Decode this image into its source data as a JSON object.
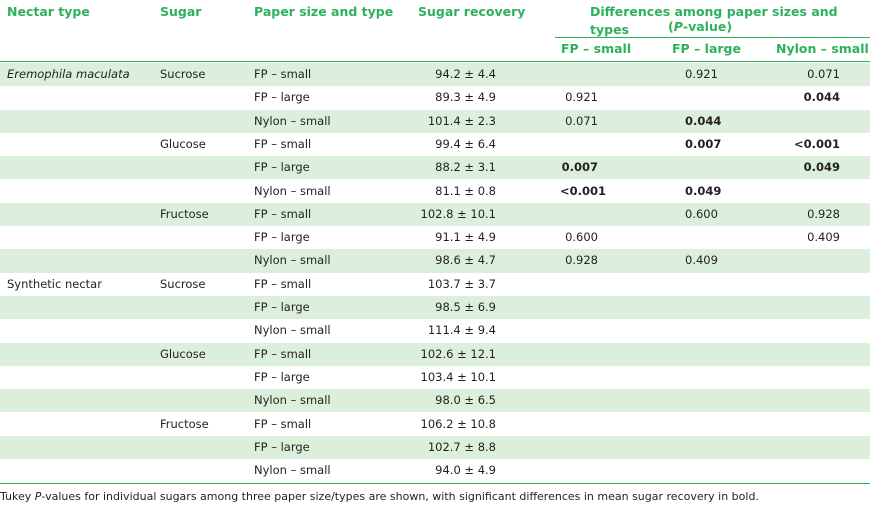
{
  "header": {
    "nectar_type": "Nectar type",
    "sugar": "Sugar",
    "paper": "Paper size and type",
    "recovery": "Sugar recovery",
    "differences_line1": "Differences among paper sizes and types",
    "differences_p": "P",
    "differences_value": "-value)",
    "differences_open": "(",
    "fp_small": "FP – small",
    "fp_large": "FP – large",
    "nylon_small": "Nylon – small"
  },
  "rows": [
    {
      "nectar": "Eremophila maculata",
      "sugar": "Sucrose",
      "paper": "FP – small",
      "recovery": "94.2 ± 4.4",
      "p1": "",
      "p2": "0.921",
      "p3": "0.071",
      "b1": false,
      "b2": false,
      "b3": false
    },
    {
      "nectar": "",
      "sugar": "",
      "paper": "FP – large",
      "recovery": "89.3 ± 4.9",
      "p1": "0.921",
      "p2": "",
      "p3": "0.044",
      "b1": false,
      "b2": false,
      "b3": true
    },
    {
      "nectar": "",
      "sugar": "",
      "paper": "Nylon – small",
      "recovery": "101.4 ± 2.3",
      "p1": "0.071",
      "p2": "0.044",
      "p3": "",
      "b1": false,
      "b2": true,
      "b3": false
    },
    {
      "nectar": "",
      "sugar": "Glucose",
      "paper": "FP – small",
      "recovery": "99.4 ± 6.4",
      "p1": "",
      "p2": "0.007",
      "p3": "<0.001",
      "b1": false,
      "b2": true,
      "b3": true
    },
    {
      "nectar": "",
      "sugar": "",
      "paper": "FP – large",
      "recovery": "88.2 ± 3.1",
      "p1": "0.007",
      "p2": "",
      "p3": "0.049",
      "b1": true,
      "b2": false,
      "b3": true
    },
    {
      "nectar": "",
      "sugar": "",
      "paper": "Nylon – small",
      "recovery": "81.1 ± 0.8",
      "p1": "<0.001",
      "p2": "0.049",
      "p3": "",
      "b1": true,
      "b2": true,
      "b3": false
    },
    {
      "nectar": "",
      "sugar": "Fructose",
      "paper": "FP – small",
      "recovery": "102.8 ± 10.1",
      "p1": "",
      "p2": "0.600",
      "p3": "0.928",
      "b1": false,
      "b2": false,
      "b3": false
    },
    {
      "nectar": "",
      "sugar": "",
      "paper": "FP – large",
      "recovery": "91.1 ± 4.9",
      "p1": "0.600",
      "p2": "",
      "p3": "0.409",
      "b1": false,
      "b2": false,
      "b3": false
    },
    {
      "nectar": "",
      "sugar": "",
      "paper": "Nylon – small",
      "recovery": "98.6 ± 4.7",
      "p1": "0.928",
      "p2": "0.409",
      "p3": "",
      "b1": false,
      "b2": false,
      "b3": false
    },
    {
      "nectar": "Synthetic nectar",
      "sugar": "Sucrose",
      "paper": "FP – small",
      "recovery": "103.7 ± 3.7",
      "p1": "",
      "p2": "",
      "p3": "",
      "b1": false,
      "b2": false,
      "b3": false
    },
    {
      "nectar": "",
      "sugar": "",
      "paper": "FP – large",
      "recovery": "98.5 ± 6.9",
      "p1": "",
      "p2": "",
      "p3": "",
      "b1": false,
      "b2": false,
      "b3": false
    },
    {
      "nectar": "",
      "sugar": "",
      "paper": "Nylon – small",
      "recovery": "111.4 ± 9.4",
      "p1": "",
      "p2": "",
      "p3": "",
      "b1": false,
      "b2": false,
      "b3": false
    },
    {
      "nectar": "",
      "sugar": "Glucose",
      "paper": "FP – small",
      "recovery": "102.6 ± 12.1",
      "p1": "",
      "p2": "",
      "p3": "",
      "b1": false,
      "b2": false,
      "b3": false
    },
    {
      "nectar": "",
      "sugar": "",
      "paper": "FP – large",
      "recovery": "103.4 ± 10.1",
      "p1": "",
      "p2": "",
      "p3": "",
      "b1": false,
      "b2": false,
      "b3": false
    },
    {
      "nectar": "",
      "sugar": "",
      "paper": "Nylon – small",
      "recovery": "98.0 ± 6.5",
      "p1": "",
      "p2": "",
      "p3": "",
      "b1": false,
      "b2": false,
      "b3": false
    },
    {
      "nectar": "",
      "sugar": "Fructose",
      "paper": "FP – small",
      "recovery": "106.2 ± 10.8",
      "p1": "",
      "p2": "",
      "p3": "",
      "b1": false,
      "b2": false,
      "b3": false
    },
    {
      "nectar": "",
      "sugar": "",
      "paper": "FP – large",
      "recovery": "102.7 ± 8.8",
      "p1": "",
      "p2": "",
      "p3": "",
      "b1": false,
      "b2": false,
      "b3": false
    },
    {
      "nectar": "",
      "sugar": "",
      "paper": "Nylon – small",
      "recovery": "94.0 ± 4.9",
      "p1": "",
      "p2": "",
      "p3": "",
      "b1": false,
      "b2": false,
      "b3": false
    }
  ],
  "footnote": {
    "before": "Tukey ",
    "p": "P",
    "after": "-values for individual sugars among three paper size/types are shown, with significant differences in mean sugar recovery in bold."
  },
  "colors": {
    "header_text": "#2eb15c",
    "rule": "#2eb15c",
    "row_shade": "#dcefdc"
  }
}
